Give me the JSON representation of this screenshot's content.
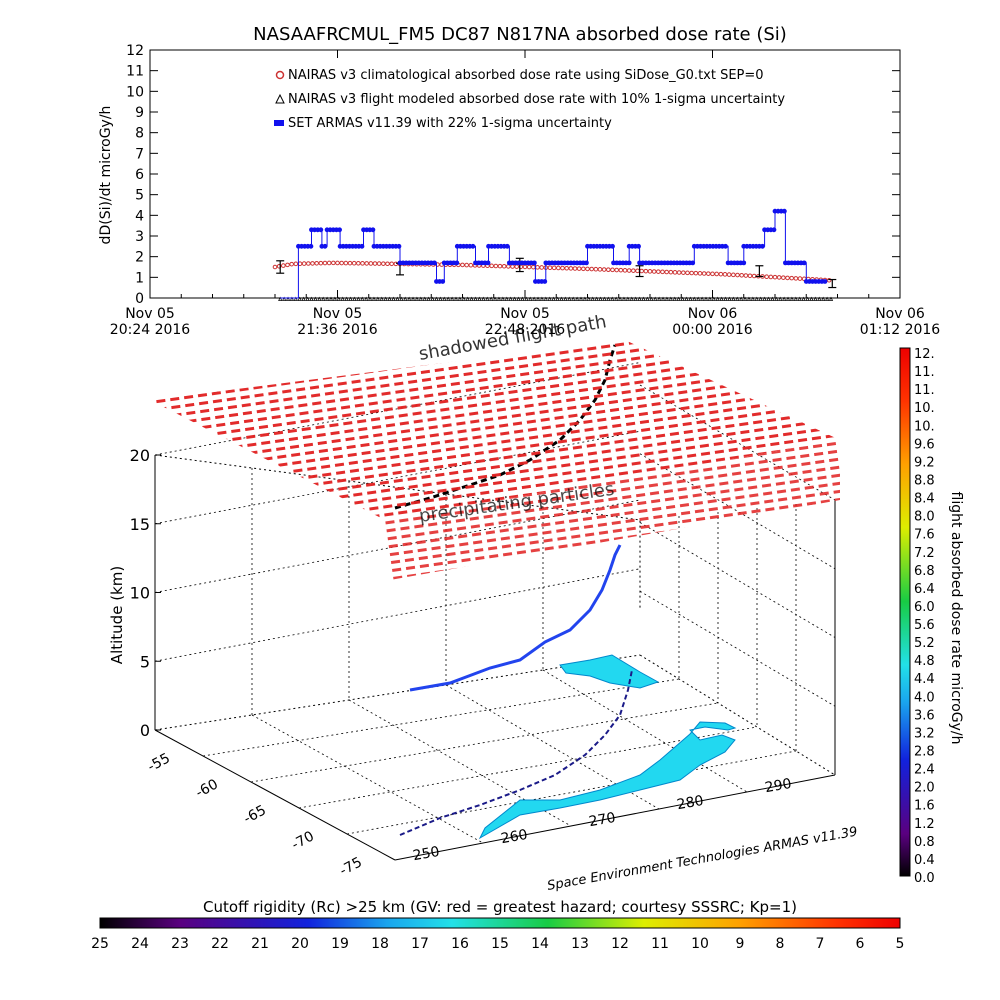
{
  "title": "NASAAFRCMUL_FM5 DC87 N817NA absorbed dose rate (Si)",
  "colors": {
    "climatological": "#cc3333",
    "armas": "#1111ee",
    "flight_modeled": "#000000",
    "shield": "#dd2222",
    "land": "#22d8f0",
    "grid": "#000000"
  },
  "chart_data": [
    {
      "type": "line",
      "title": "NASAAFRCMUL_FM5 DC87 N817NA absorbed dose rate (Si)",
      "ylabel": "dD(Si)/dt microGy/h",
      "ylim": [
        0,
        12
      ],
      "y_ticks": [
        "0",
        "1",
        "2",
        "3",
        "4",
        "5",
        "6",
        "7",
        "8",
        "9",
        "10",
        "11",
        "12"
      ],
      "x_ticks": [
        {
          "date": "Nov 05",
          "time": "20:24 2016"
        },
        {
          "date": "Nov 05",
          "time": "21:36 2016"
        },
        {
          "date": "Nov 05",
          "time": "22:48 2016"
        },
        {
          "date": "Nov 06",
          "time": "00:00 2016"
        },
        {
          "date": "Nov 06",
          "time": "01:12 2016"
        }
      ],
      "legend_position": "top-center",
      "legend": [
        "NAIRAS v3 climatological absorbed dose rate using SiDose_G0.txt SEP=0",
        "NAIRAS v3 flight modeled absorbed dose rate with 10% 1-sigma uncertainty",
        "SET ARMAS v11.39 with 22% 1-sigma uncertainty"
      ],
      "x_minutes_range": [
        0,
        288
      ],
      "series": [
        {
          "name": "NAIRAS v3 climatological absorbed dose rate using SiDose_G0.txt SEP=0",
          "style": "markers",
          "x": [
            48,
            288
          ],
          "trend": [
            [
              48,
              1.5
            ],
            [
              55,
              1.65
            ],
            [
              70,
              1.7
            ],
            [
              120,
              1.6
            ],
            [
              170,
              1.4
            ],
            [
              220,
              1.15
            ],
            [
              262,
              0.85
            ]
          ]
        },
        {
          "name": "NAIRAS v3 flight modeled absorbed dose rate with 10% 1-sigma uncertainty",
          "style": "errorbars",
          "points": [
            [
              50,
              1.5
            ],
            [
              96,
              1.4
            ],
            [
              142,
              1.6
            ],
            [
              188,
              1.3
            ],
            [
              234,
              1.3
            ],
            [
              262,
              0.7
            ]
          ]
        },
        {
          "name": "SET ARMAS v11.39 with 22% 1-sigma uncertainty",
          "style": "step-line",
          "points": [
            [
              50,
              0
            ],
            [
              57,
              0
            ],
            [
              57,
              2.5
            ],
            [
              62,
              2.5
            ],
            [
              62,
              3.3
            ],
            [
              66,
              3.3
            ],
            [
              66,
              2.5
            ],
            [
              68,
              2.5
            ],
            [
              68,
              3.3
            ],
            [
              73,
              3.3
            ],
            [
              73,
              2.5
            ],
            [
              82,
              2.5
            ],
            [
              82,
              3.3
            ],
            [
              86,
              3.3
            ],
            [
              86,
              2.5
            ],
            [
              96,
              2.5
            ],
            [
              96,
              1.7
            ],
            [
              110,
              1.7
            ],
            [
              110,
              0.8
            ],
            [
              113,
              0.8
            ],
            [
              113,
              1.7
            ],
            [
              118,
              1.7
            ],
            [
              118,
              2.5
            ],
            [
              125,
              2.5
            ],
            [
              125,
              1.7
            ],
            [
              130,
              1.7
            ],
            [
              130,
              2.5
            ],
            [
              138,
              2.5
            ],
            [
              138,
              1.7
            ],
            [
              148,
              1.7
            ],
            [
              148,
              0.8
            ],
            [
              152,
              0.8
            ],
            [
              152,
              1.7
            ],
            [
              168,
              1.7
            ],
            [
              168,
              2.5
            ],
            [
              178,
              2.5
            ],
            [
              178,
              1.7
            ],
            [
              184,
              1.7
            ],
            [
              184,
              2.5
            ],
            [
              188,
              2.5
            ],
            [
              188,
              1.7
            ],
            [
              209,
              1.7
            ],
            [
              209,
              2.5
            ],
            [
              222,
              2.5
            ],
            [
              222,
              1.7
            ],
            [
              228,
              1.7
            ],
            [
              228,
              2.5
            ],
            [
              236,
              2.5
            ],
            [
              236,
              3.3
            ],
            [
              240,
              3.3
            ],
            [
              240,
              4.2
            ],
            [
              244,
              4.2
            ],
            [
              244,
              1.7
            ],
            [
              252,
              1.7
            ],
            [
              252,
              0.8
            ],
            [
              260,
              0.8
            ]
          ]
        }
      ]
    },
    {
      "type": "scatter",
      "title": "",
      "zlabel": "Altitude (km)",
      "z_ticks": [
        "0",
        "5",
        "10",
        "15",
        "20"
      ],
      "lat_ticks": [
        "-55",
        "-60",
        "-65",
        "-70",
        "-75"
      ],
      "lon_ticks": [
        "250",
        "260",
        "270",
        "280",
        "290"
      ],
      "annotations": [
        "shadowed flight path",
        "precipitating particles"
      ],
      "credit": "Space Environment Technologies ARMAS v11.39",
      "colorbar_dose": {
        "label": "flight absorbed dose rate microGy/h",
        "ticks": [
          "12.",
          "11.",
          "11.",
          "10.",
          "10.",
          "9.6",
          "9.2",
          "8.8",
          "8.4",
          "8.0",
          "7.6",
          "7.2",
          "6.8",
          "6.4",
          "6.0",
          "5.6",
          "5.2",
          "4.8",
          "4.4",
          "4.0",
          "3.6",
          "3.2",
          "2.8",
          "2.4",
          "2.0",
          "1.6",
          "1.2",
          "0.8",
          "0.4",
          "0.0"
        ]
      },
      "colorbar_rigidity": {
        "label": "Cutoff rigidity (Rc) >25 km (GV: red = greatest hazard; courtesy SSSRC; Kp=1)",
        "ticks": [
          "25",
          "24",
          "23",
          "22",
          "21",
          "20",
          "19",
          "18",
          "17",
          "16",
          "15",
          "14",
          "13",
          "12",
          "11",
          "10",
          "9",
          "8",
          "7",
          "6",
          "5"
        ]
      }
    }
  ]
}
